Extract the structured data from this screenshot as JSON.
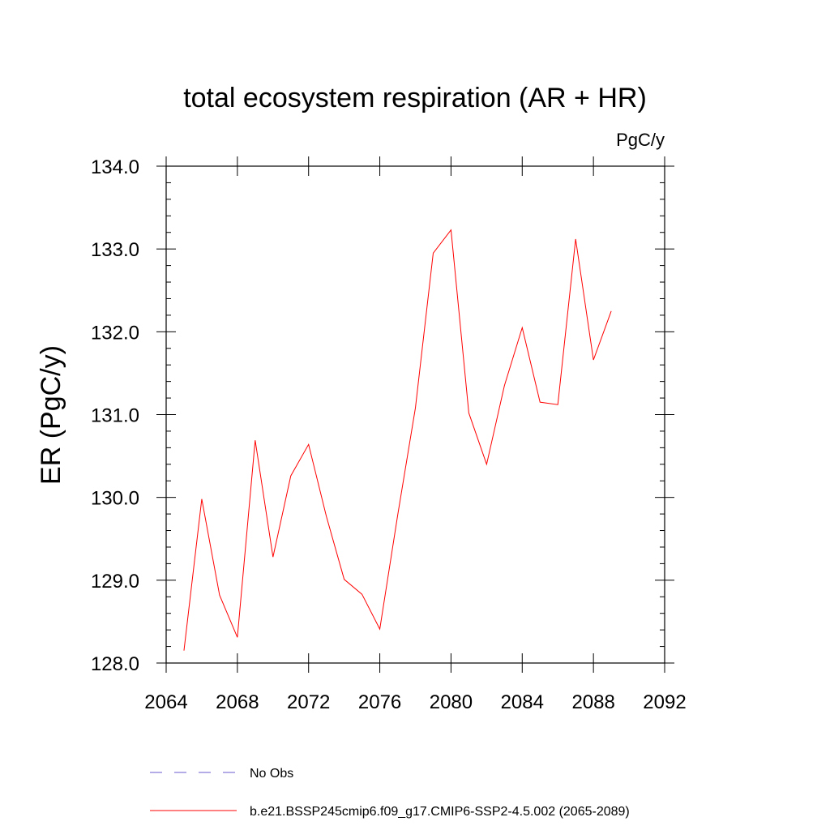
{
  "chart_data": {
    "type": "line",
    "title": "total ecosystem respiration (AR + HR)",
    "units_label": "PgC/y",
    "ylabel": "ER  (PgC/y)",
    "xlabel": "",
    "xlim": [
      2064,
      2092
    ],
    "ylim": [
      128.0,
      134.0
    ],
    "x_ticks": [
      2064,
      2068,
      2072,
      2076,
      2080,
      2084,
      2088,
      2092
    ],
    "x_tick_labels": [
      "2064",
      "2068",
      "2072",
      "2076",
      "2080",
      "2084",
      "2088",
      "2092"
    ],
    "y_ticks": [
      128.0,
      129.0,
      130.0,
      131.0,
      132.0,
      133.0,
      134.0
    ],
    "y_tick_labels": [
      "128.0",
      "129.0",
      "130.0",
      "131.0",
      "132.0",
      "133.0",
      "134.0"
    ],
    "grid": false,
    "legend_position": "bottom",
    "series": [
      {
        "name": "b.e21.BSSP245cmip6.f09_g17.CMIP6-SSP2-4.5.002 (2065-2089)",
        "color": "#ff0000",
        "style": "solid",
        "x": [
          2065,
          2066,
          2067,
          2068,
          2069,
          2070,
          2071,
          2072,
          2073,
          2074,
          2075,
          2076,
          2077,
          2078,
          2079,
          2080,
          2081,
          2082,
          2083,
          2084,
          2085,
          2086,
          2087,
          2088,
          2089
        ],
        "y": [
          128.15,
          129.98,
          128.82,
          128.31,
          130.69,
          129.28,
          130.26,
          130.64,
          129.77,
          129.01,
          128.83,
          128.41,
          129.78,
          131.08,
          132.95,
          133.23,
          131.02,
          130.4,
          131.35,
          132.05,
          131.15,
          131.12,
          133.12,
          131.66,
          132.25
        ]
      }
    ],
    "legend": [
      {
        "label": "No Obs",
        "color": "#6a5acd",
        "style": "dashed"
      },
      {
        "label": "b.e21.BSSP245cmip6.f09_g17.CMIP6-SSP2-4.5.002 (2065-2089)",
        "color": "#ff0000",
        "style": "solid"
      }
    ]
  }
}
